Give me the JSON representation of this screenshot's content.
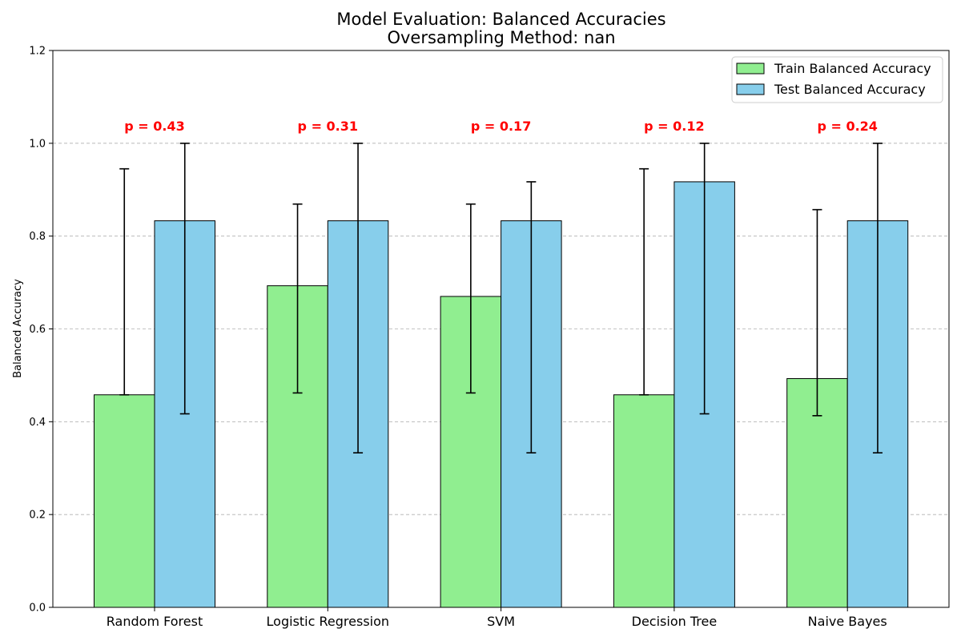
{
  "chart_data": {
    "type": "bar",
    "title": "Model Evaluation: Balanced Accuracies",
    "subtitle": "Oversampling Method: nan",
    "xlabel": "",
    "ylabel": "Balanced Accuracy",
    "ylim": [
      0,
      1.2
    ],
    "yticks": [
      "0.0",
      "0.2",
      "0.4",
      "0.6",
      "0.8",
      "1.0",
      "1.2"
    ],
    "grid": "y-dashed",
    "legend_position": "top-right",
    "categories": [
      "Random Forest",
      "Logistic Regression",
      "SVM",
      "Decision Tree",
      "Naive Bayes"
    ],
    "series": [
      {
        "name": "Train Balanced Accuracy",
        "color": "#90ee90",
        "values": [
          0.458,
          0.693,
          0.67,
          0.458,
          0.493
        ],
        "error_low": [
          0.458,
          0.462,
          0.462,
          0.458,
          0.413
        ],
        "error_high": [
          0.945,
          0.869,
          0.869,
          0.945,
          0.857
        ]
      },
      {
        "name": "Test Balanced Accuracy",
        "color": "#87ceeb",
        "values": [
          0.833,
          0.833,
          0.833,
          0.917,
          0.833
        ],
        "error_low": [
          0.417,
          0.333,
          0.333,
          0.417,
          0.333
        ],
        "error_high": [
          1.0,
          1.0,
          0.917,
          1.0,
          1.0
        ]
      }
    ],
    "annotations": [
      "p = 0.43",
      "p = 0.31",
      "p = 0.17",
      "p = 0.12",
      "p = 0.24"
    ],
    "annotation_color": "#ff0000"
  }
}
